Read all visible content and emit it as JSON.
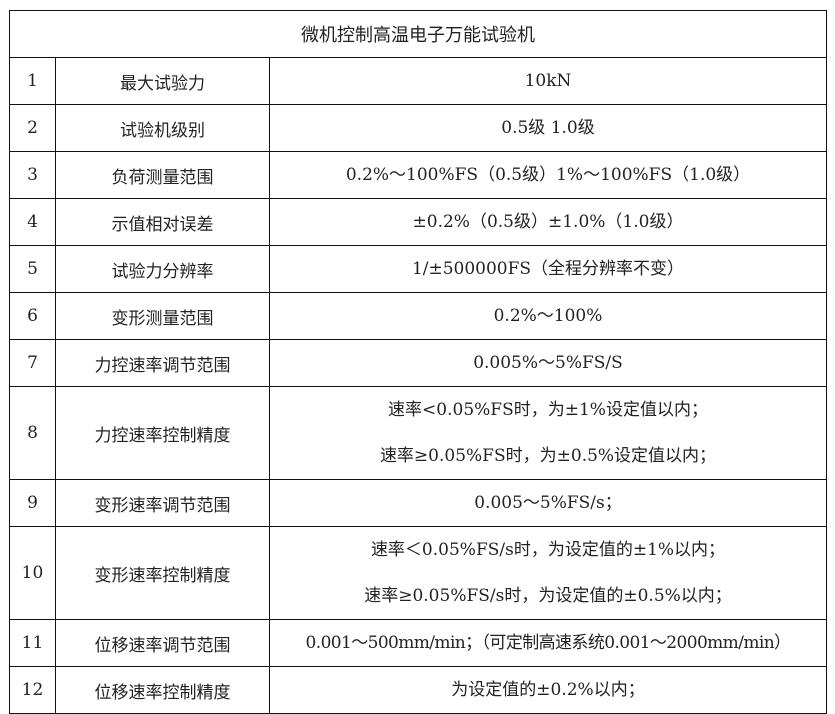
{
  "title": "微机控制高温电子万能试验机",
  "rows": [
    {
      "no": "1",
      "item": "最大试验力",
      "value": [
        "10kN"
      ]
    },
    {
      "no": "2",
      "item": "试验机级别",
      "value": [
        "0.5级 1.0级"
      ]
    },
    {
      "no": "3",
      "item": "负荷测量范围",
      "value": [
        "0.2%～100%FS（0.5级）1%～100%FS（1.0级）"
      ]
    },
    {
      "no": "4",
      "item": "示值相对误差",
      "value": [
        "±0.2%（0.5级）±1.0%（1.0级）"
      ]
    },
    {
      "no": "5",
      "item": "试验力分辨率",
      "value": [
        "1/±500000FS（全程分辨率不变）"
      ]
    },
    {
      "no": "6",
      "item": "变形测量范围",
      "value": [
        "0.2%～100%"
      ]
    },
    {
      "no": "7",
      "item": "力控速率调节范围",
      "value": [
        "0.005%～5%FS/S"
      ]
    },
    {
      "no": "8",
      "item": "力控速率控制精度",
      "value": [
        "速率<0.05%FS时，为±1%设定值以内；",
        "速率≥0.05%FS时，为±0.5%设定值以内；"
      ]
    },
    {
      "no": "9",
      "item": "变形速率调节范围",
      "value": [
        "0.005～5%FS/s；"
      ]
    },
    {
      "no": "10",
      "item": "变形速率控制精度",
      "value": [
        "速率＜0.05%FS/s时，为设定值的±1%以内；",
        "速率≥0.05%FS/s时，为设定值的±0.5%以内；"
      ]
    },
    {
      "no": "11",
      "item": "位移速率调节范围",
      "value": [
        "0.001～500mm/min；（可定制高速系统0.001～2000mm/min）"
      ]
    },
    {
      "no": "12",
      "item": "位移速率控制精度",
      "value": [
        "为设定值的±0.2%以内；"
      ]
    }
  ]
}
